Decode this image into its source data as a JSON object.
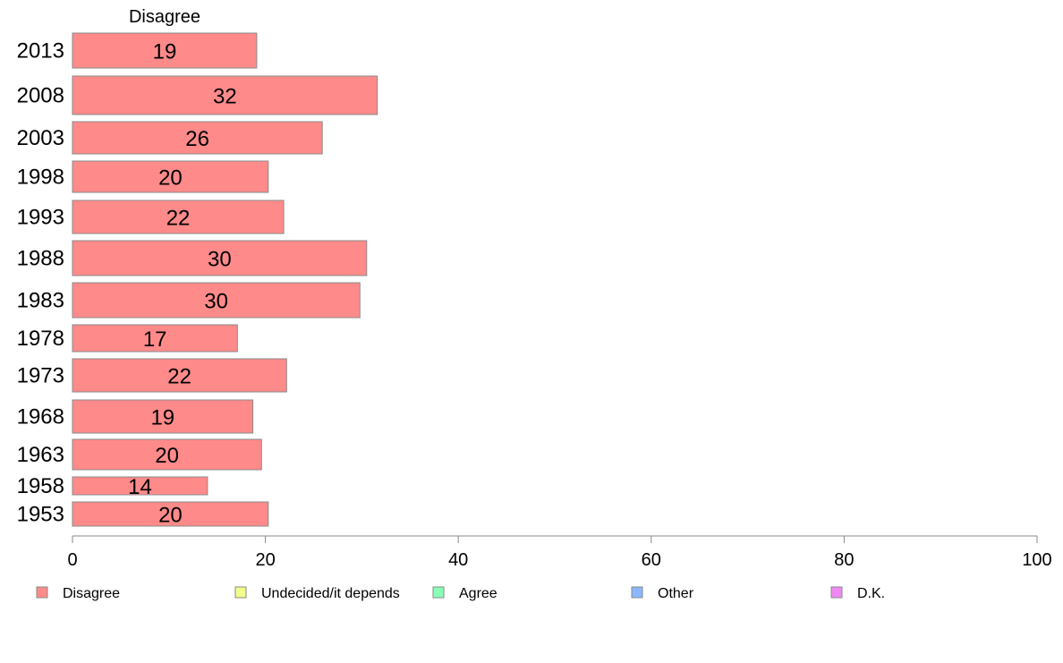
{
  "chart_data": {
    "type": "bar",
    "orientation": "horizontal",
    "series": [
      {
        "name": "Disagree",
        "color": "#ff8a8a",
        "categories": [
          "2013",
          "2008",
          "2003",
          "1998",
          "1993",
          "1988",
          "1983",
          "1978",
          "1973",
          "1968",
          "1963",
          "1958",
          "1953"
        ],
        "values": [
          19.1,
          31.6,
          25.9,
          20.3,
          21.9,
          30.5,
          29.8,
          17.1,
          22.2,
          18.7,
          19.6,
          14.0,
          20.3
        ],
        "labels": [
          "19",
          "32",
          "26",
          "20",
          "22",
          "30",
          "30",
          "17",
          "22",
          "19",
          "20",
          "14",
          "20"
        ]
      }
    ],
    "panel_title": "Disagree",
    "xlim": [
      0,
      100
    ],
    "xticks": [
      0,
      20,
      40,
      60,
      80,
      100
    ],
    "grid": false,
    "legend": {
      "position": "bottom",
      "entries": [
        {
          "label": "Disagree",
          "color": "#ff8a8a"
        },
        {
          "label": "Undecided/it depends",
          "color": "#f2ff8a"
        },
        {
          "label": "Agree",
          "color": "#8affb8"
        },
        {
          "label": "Other",
          "color": "#8ab8ff"
        },
        {
          "label": "D.K.",
          "color": "#f08af2"
        }
      ]
    }
  }
}
